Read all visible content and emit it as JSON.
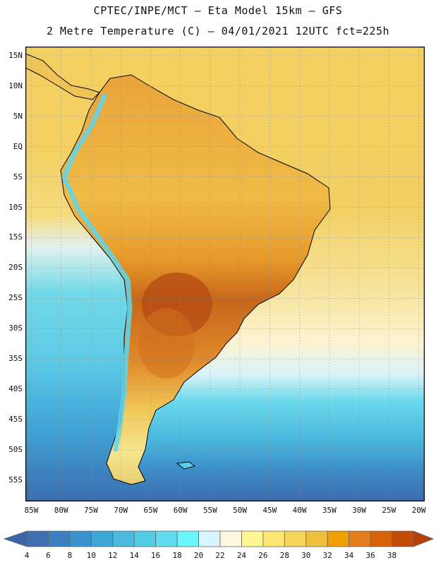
{
  "title_line1": "CPTEC/INPE/MCT –  Eta Model 15km – GFS",
  "title_line2": "2 Metre Temperature (C) – 04/01/2021 12UTC fct=225h",
  "lat_labels": [
    "15N",
    "10N",
    "5N",
    "EQ",
    "5S",
    "10S",
    "15S",
    "20S",
    "25S",
    "30S",
    "35S",
    "40S",
    "45S",
    "50S",
    "55S"
  ],
  "lon_labels": [
    "85W",
    "80W",
    "75W",
    "70W",
    "65W",
    "60W",
    "55W",
    "50W",
    "45W",
    "40W",
    "35W",
    "30W",
    "25W",
    "20W"
  ],
  "lat_values": [
    15,
    10,
    5,
    0,
    -5,
    -10,
    -15,
    -20,
    -25,
    -30,
    -35,
    -40,
    -45,
    -50,
    -55
  ],
  "lon_values": [
    -85,
    -80,
    -75,
    -70,
    -65,
    -60,
    -55,
    -50,
    -45,
    -40,
    -35,
    -30,
    -25,
    -20
  ],
  "map_extent": {
    "lon_min": -86,
    "lon_max": -19,
    "lat_min": -58.5,
    "lat_max": 16.5
  },
  "colorbar": {
    "labels": [
      "4",
      "6",
      "8",
      "10",
      "12",
      "14",
      "16",
      "18",
      "20",
      "22",
      "24",
      "26",
      "28",
      "30",
      "32",
      "34",
      "36",
      "38"
    ],
    "colors": [
      "#3f6fb0",
      "#3a80c0",
      "#3a93cc",
      "#3fa7d6",
      "#48bbdf",
      "#52cde6",
      "#5fdcee",
      "#6cf5fa",
      "#d6f6fb",
      "#fff8e0",
      "#fff591",
      "#fbe772",
      "#f5d45c",
      "#efc040",
      "#f0a000",
      "#e47d1b",
      "#d8620a",
      "#c04a06"
    ],
    "under_color": "#3a66a8",
    "over_color": "#b83e0a"
  }
}
